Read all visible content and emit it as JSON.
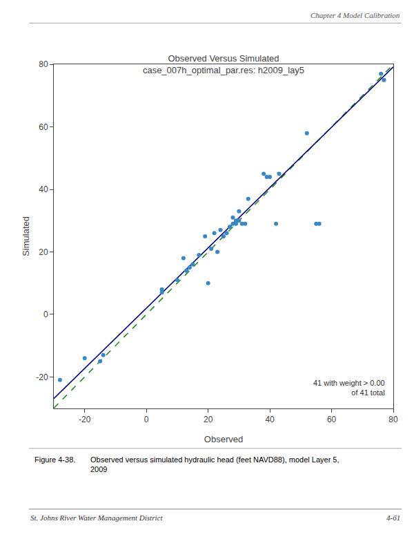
{
  "chart_data": {
    "type": "scatter",
    "title": "Observed Versus Simulated\ncase_007h_optimal_par.res: h2009_lay5",
    "xlabel": "Observed",
    "ylabel": "Simulated",
    "xlim": [
      -30,
      80
    ],
    "ylim": [
      -30,
      80
    ],
    "xticks": [
      -20,
      0,
      20,
      40,
      60,
      80
    ],
    "yticks": [
      -20,
      0,
      20,
      40,
      60,
      80
    ],
    "grid": false,
    "series": [
      {
        "type": "scatter",
        "color": "#3a87c8",
        "marker": "circle",
        "x": [
          -28,
          -20,
          -15,
          -14,
          5,
          5,
          10,
          12,
          13,
          13,
          14,
          15,
          17,
          19,
          20,
          21,
          22,
          23,
          24,
          25,
          26,
          27,
          28,
          28,
          29,
          29,
          30,
          30,
          31,
          32,
          33,
          38,
          39,
          40,
          42,
          43,
          52,
          55,
          56,
          76,
          77
        ],
        "values": [
          -21,
          -14,
          -15,
          -13,
          8,
          7,
          11,
          18,
          14,
          14,
          15,
          16,
          19,
          25,
          10,
          21,
          26,
          20,
          27,
          25,
          26,
          28,
          31,
          29,
          30,
          29,
          33,
          30,
          29,
          29,
          37,
          45,
          44,
          44,
          29,
          45,
          58,
          29,
          29,
          77,
          75
        ]
      },
      {
        "type": "line",
        "color": "#228B22",
        "line_style": "dashed",
        "x": [
          -30,
          80
        ],
        "values": [
          -30,
          80
        ]
      },
      {
        "type": "line",
        "color": "#00008B",
        "line_style": "solid",
        "x": [
          -30,
          80
        ],
        "values": [
          -26.95,
          79.2
        ]
      }
    ],
    "annotation": "41 with weight > 0.00\nof 41 total",
    "header": "Chapter 4 Model Calibration",
    "caption_label": "Figure 4-38.",
    "caption": "Observed versus simulated hydraulic head (feet NAVD88), model Layer 5,\n2009",
    "footer_left": "St. Johns River Water Management District",
    "footer_right": "4-61"
  }
}
